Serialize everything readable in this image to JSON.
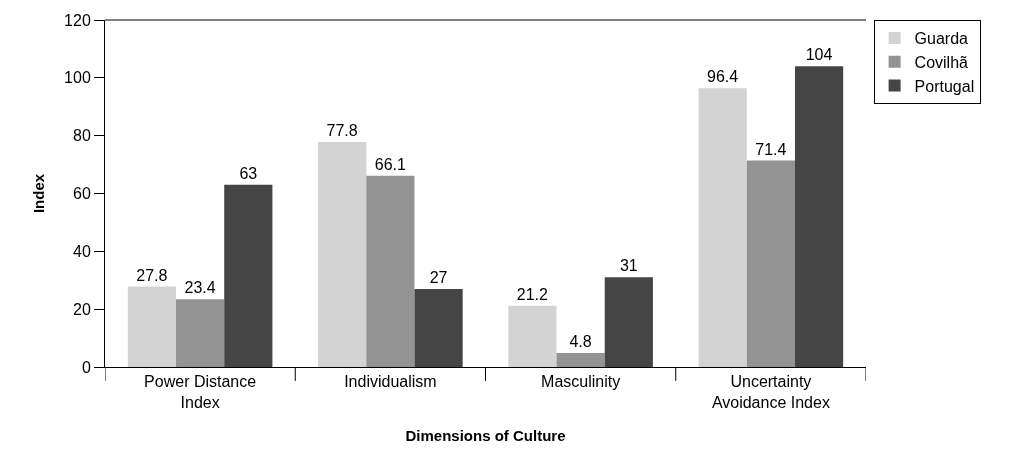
{
  "chart_data": {
    "type": "bar",
    "xlabel": "Dimensions of Culture",
    "ylabel": "Index",
    "categories": [
      "Power Distance Index",
      "Individualism",
      "Masculinity",
      "Uncertainty Avoidance Index"
    ],
    "series": [
      {
        "name": "Guarda",
        "color": "#d3d3d3",
        "values": [
          27.8,
          77.8,
          21.2,
          96.4
        ]
      },
      {
        "name": "Covilhã",
        "color": "#939393",
        "values": [
          23.4,
          66.1,
          4.8,
          71.4
        ]
      },
      {
        "name": "Portugal",
        "color": "#454545",
        "values": [
          63,
          27,
          31,
          104
        ]
      }
    ],
    "ylim": [
      0,
      120
    ],
    "yticks": [
      0,
      20,
      40,
      60,
      80,
      100,
      120
    ],
    "legend": "top right",
    "data_labels": true
  }
}
